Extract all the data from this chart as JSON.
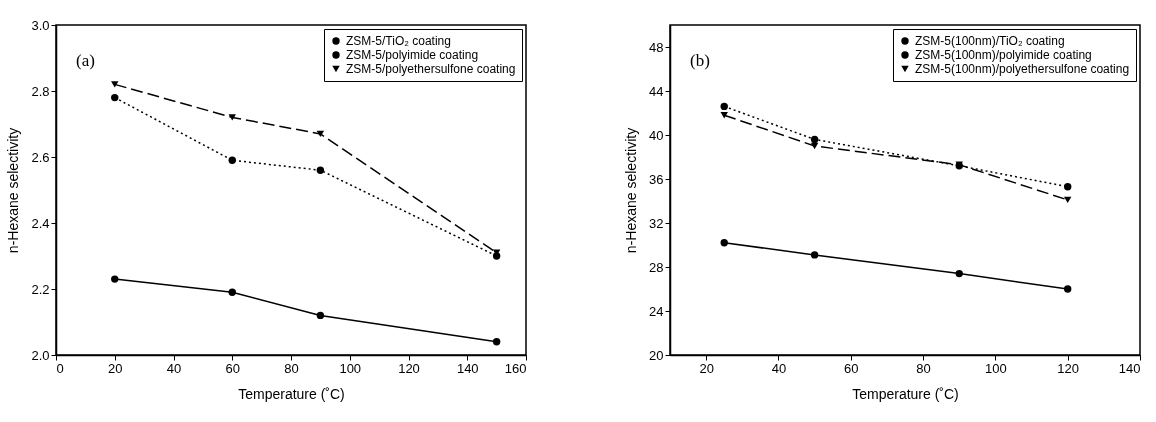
{
  "chart_data": [
    {
      "type": "line",
      "xlabel": "Temperature (˚C)",
      "ylabel": "n-Hexane selectivity",
      "annotations": [
        "(a)"
      ],
      "x": [
        20,
        60,
        90,
        150
      ],
      "xlim": [
        0,
        160
      ],
      "xticks": [
        0,
        20,
        40,
        60,
        80,
        100,
        120,
        140,
        160
      ],
      "ylim": [
        2.0,
        3.0
      ],
      "yticks": [
        {
          "value": 2.0,
          "label": "2.0"
        },
        2.2,
        2.4,
        2.6,
        2.8,
        {
          "value": 3.0,
          "label": "3.0"
        }
      ],
      "legend": "top right",
      "grid": false,
      "series": [
        {
          "name": "ZSM-5/TiO₂ coating",
          "color": "#000000",
          "marker": "circle",
          "line_style": "solid",
          "values": [
            2.23,
            2.19,
            2.12,
            2.04
          ]
        },
        {
          "name": "ZSM-5/polyimide coating",
          "color": "#000000",
          "marker": "circle",
          "line_style": "dotted",
          "values": [
            2.78,
            2.59,
            2.56,
            2.3
          ]
        },
        {
          "name": "ZSM-5/polyethersulfone coating",
          "color": "#000000",
          "marker": "triangle",
          "line_style": "dashed",
          "values": [
            2.82,
            2.72,
            2.67,
            2.31
          ]
        }
      ]
    },
    {
      "type": "line",
      "xlabel": "Temperature (˚C)",
      "ylabel": "n-Hexane selectivity",
      "annotations": [
        "(b)"
      ],
      "x": [
        25,
        50,
        90,
        120
      ],
      "xlim": [
        10,
        140
      ],
      "xticks": [
        20,
        40,
        60,
        80,
        100,
        120,
        140
      ],
      "ylim": [
        20,
        50
      ],
      "yticks": [
        20,
        24,
        28,
        32,
        36,
        40,
        44,
        48
      ],
      "legend": "top right",
      "grid": false,
      "series": [
        {
          "name": "ZSM-5(100nm)/TiO₂ coating",
          "color": "#000000",
          "marker": "circle",
          "line_style": "solid",
          "values": [
            30.2,
            29.1,
            27.4,
            26.0
          ]
        },
        {
          "name": "ZSM-5(100nm)/polyimide coating",
          "color": "#000000",
          "marker": "circle",
          "line_style": "dotted",
          "values": [
            42.6,
            39.6,
            37.2,
            35.3
          ]
        },
        {
          "name": "ZSM-5(100nm)/polyethersulfone coating",
          "color": "#000000",
          "marker": "triangle",
          "line_style": "dashed",
          "values": [
            41.8,
            39.0,
            37.3,
            34.1
          ]
        }
      ]
    }
  ]
}
